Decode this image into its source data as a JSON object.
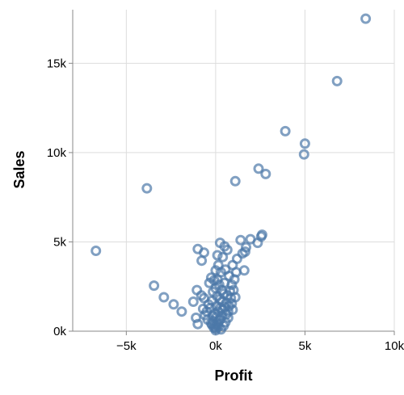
{
  "chart_data": {
    "type": "scatter",
    "title": "",
    "xlabel": "Profit",
    "ylabel": "Sales",
    "xlim": [
      -8000,
      10000
    ],
    "ylim": [
      0,
      18000
    ],
    "x_ticks": [
      -5000,
      0,
      5000,
      10000
    ],
    "x_tick_labels": [
      "−5k",
      "0k",
      "5k",
      "10k"
    ],
    "y_ticks": [
      0,
      5000,
      10000,
      15000
    ],
    "y_tick_labels": [
      "0k",
      "5k",
      "10k",
      "15k"
    ],
    "grid": true,
    "marker": "open-circle",
    "color": "#4c78a8",
    "points": [
      {
        "x": 8400,
        "y": 17500
      },
      {
        "x": 6800,
        "y": 14000
      },
      {
        "x": 3900,
        "y": 11200
      },
      {
        "x": 5000,
        "y": 10500
      },
      {
        "x": 4950,
        "y": 9900
      },
      {
        "x": 2400,
        "y": 9100
      },
      {
        "x": 2800,
        "y": 8800
      },
      {
        "x": 1100,
        "y": 8400
      },
      {
        "x": -3850,
        "y": 8000
      },
      {
        "x": -6700,
        "y": 4500
      },
      {
        "x": -1000,
        "y": 4600
      },
      {
        "x": -650,
        "y": 4400
      },
      {
        "x": -780,
        "y": 3950
      },
      {
        "x": 2600,
        "y": 5400
      },
      {
        "x": 2550,
        "y": 5300
      },
      {
        "x": 1400,
        "y": 5100
      },
      {
        "x": 1950,
        "y": 5150
      },
      {
        "x": 2350,
        "y": 4950
      },
      {
        "x": 1700,
        "y": 4700
      },
      {
        "x": 1500,
        "y": 4350
      },
      {
        "x": 1650,
        "y": 4450
      },
      {
        "x": 1200,
        "y": 4050
      },
      {
        "x": 250,
        "y": 4950
      },
      {
        "x": 500,
        "y": 4750
      },
      {
        "x": 650,
        "y": 4550
      },
      {
        "x": 100,
        "y": 4250
      },
      {
        "x": 400,
        "y": 4150
      },
      {
        "x": 950,
        "y": 3700
      },
      {
        "x": 1600,
        "y": 3400
      },
      {
        "x": -3450,
        "y": 2550
      },
      {
        "x": -2900,
        "y": 1900
      },
      {
        "x": -2350,
        "y": 1500
      },
      {
        "x": -1900,
        "y": 1100
      },
      {
        "x": -1250,
        "y": 1650
      },
      {
        "x": -1050,
        "y": 2300
      },
      {
        "x": -800,
        "y": 2000
      },
      {
        "x": -650,
        "y": 1850
      },
      {
        "x": -1100,
        "y": 750
      },
      {
        "x": -1000,
        "y": 400
      },
      {
        "x": -700,
        "y": 1250
      },
      {
        "x": -500,
        "y": 1100
      },
      {
        "x": -400,
        "y": 1500
      },
      {
        "x": -350,
        "y": 2700
      },
      {
        "x": -250,
        "y": 3000
      },
      {
        "x": -150,
        "y": 2200
      },
      {
        "x": -80,
        "y": 2850
      },
      {
        "x": 0,
        "y": 3400
      },
      {
        "x": 150,
        "y": 3700
      },
      {
        "x": 300,
        "y": 3300
      },
      {
        "x": 550,
        "y": 3450
      },
      {
        "x": 750,
        "y": 3100
      },
      {
        "x": 900,
        "y": 2600
      },
      {
        "x": 1050,
        "y": 2900
      },
      {
        "x": 1150,
        "y": 3300
      },
      {
        "x": 1000,
        "y": 2300
      },
      {
        "x": 850,
        "y": 1850
      },
      {
        "x": 1100,
        "y": 1900
      },
      {
        "x": 750,
        "y": 1400
      },
      {
        "x": 950,
        "y": 1200
      },
      {
        "x": 600,
        "y": 950
      },
      {
        "x": 450,
        "y": 2100
      },
      {
        "x": 350,
        "y": 1650
      },
      {
        "x": 200,
        "y": 2600
      },
      {
        "x": 80,
        "y": 1950
      },
      {
        "x": -150,
        "y": 850
      },
      {
        "x": -250,
        "y": 450
      },
      {
        "x": -100,
        "y": 200
      },
      {
        "x": 100,
        "y": 350
      },
      {
        "x": 250,
        "y": 650
      },
      {
        "x": 400,
        "y": 1200
      },
      {
        "x": 550,
        "y": 500
      },
      {
        "x": 700,
        "y": 750
      },
      {
        "x": 300,
        "y": 100
      },
      {
        "x": 0,
        "y": 50
      },
      {
        "x": -50,
        "y": 1000
      },
      {
        "x": 50,
        "y": 1400
      },
      {
        "x": 150,
        "y": 1100
      },
      {
        "x": 250,
        "y": 1800
      },
      {
        "x": 350,
        "y": 2300
      },
      {
        "x": 500,
        "y": 2700
      },
      {
        "x": 650,
        "y": 2000
      },
      {
        "x": 800,
        "y": 2250
      },
      {
        "x": -300,
        "y": 1300
      },
      {
        "x": -450,
        "y": 650
      },
      {
        "x": -600,
        "y": 900
      },
      {
        "x": -200,
        "y": 1700
      },
      {
        "x": 0,
        "y": 2400
      },
      {
        "x": 100,
        "y": 2900
      },
      {
        "x": 200,
        "y": 600
      },
      {
        "x": 450,
        "y": 300
      },
      {
        "x": 600,
        "y": 1600
      },
      {
        "x": 700,
        "y": 1100
      },
      {
        "x": 900,
        "y": 1550
      },
      {
        "x": -150,
        "y": 550
      },
      {
        "x": 50,
        "y": 800
      },
      {
        "x": 150,
        "y": 250
      },
      {
        "x": 350,
        "y": 850
      },
      {
        "x": 0,
        "y": 150
      },
      {
        "x": -50,
        "y": 300
      },
      {
        "x": 80,
        "y": 450
      },
      {
        "x": -200,
        "y": 350
      },
      {
        "x": 250,
        "y": 1300
      },
      {
        "x": 500,
        "y": 1350
      }
    ]
  }
}
